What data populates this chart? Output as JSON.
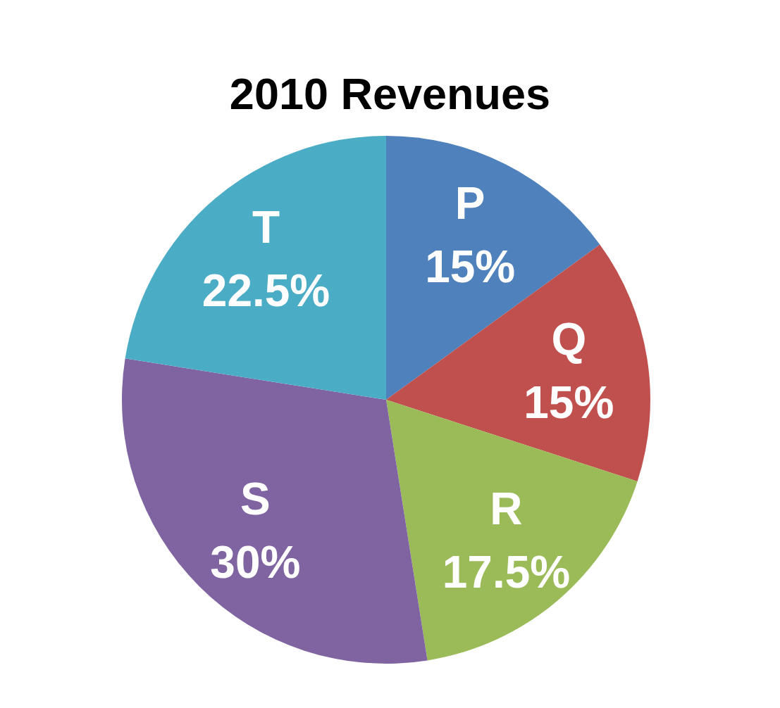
{
  "chart_data": {
    "type": "pie",
    "title": "2010 Revenues",
    "categories": [
      "P",
      "Q",
      "R",
      "S",
      "T"
    ],
    "values": [
      15,
      15,
      17.5,
      30,
      22.5
    ],
    "colors": [
      "#4f81bd",
      "#c0504d",
      "#9bbb59",
      "#8064a2",
      "#4bacc6"
    ],
    "value_labels": [
      "15%",
      "15%",
      "17.5%",
      "30%",
      "22.5%"
    ]
  }
}
